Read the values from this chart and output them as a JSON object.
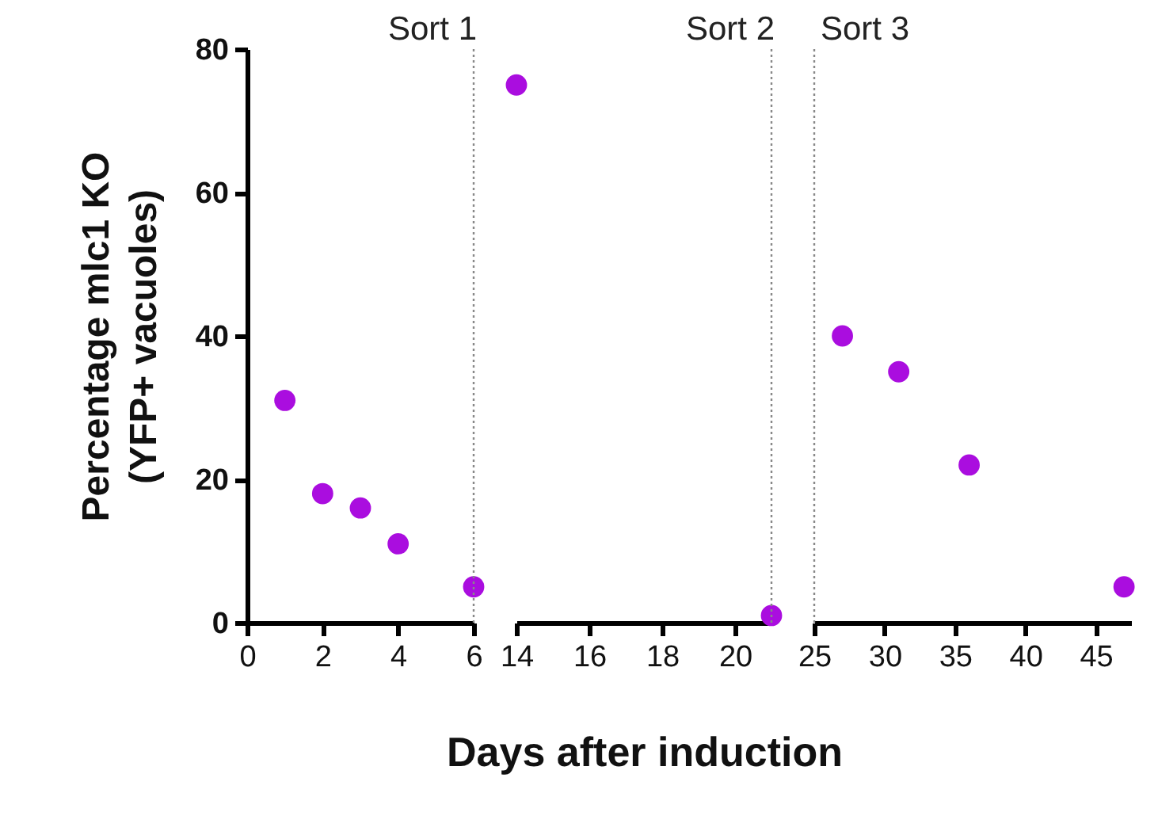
{
  "chart_data": [
    {
      "type": "scatter",
      "ylabel": "Percentage mlc1 KO\n(YFP+ vacuoles)",
      "xlim": [
        0,
        6
      ],
      "xticks": [
        0,
        2,
        4,
        6
      ],
      "ylim": [
        0,
        80
      ],
      "yticks": [
        0,
        20,
        40,
        60,
        80
      ],
      "marker": "circle",
      "grid": false,
      "series": [
        {
          "color": "#aa0ddf",
          "x": [
            1,
            2,
            3,
            4,
            6
          ],
          "values": [
            31,
            18,
            16,
            11,
            5
          ]
        }
      ],
      "ref_lines": [
        {
          "axis": "x",
          "value": 6,
          "label": "Sort 1",
          "color": "#888888",
          "line_style": "dotted"
        }
      ]
    },
    {
      "type": "scatter",
      "xlabel": "Days after induction",
      "xlim": [
        14,
        21
      ],
      "xticks": [
        14,
        16,
        18,
        20
      ],
      "ylim": [
        0,
        80
      ],
      "tick_labels": "x",
      "marker": "circle",
      "grid": false,
      "series": [
        {
          "color": "#aa0ddf",
          "x": [
            14,
            21
          ],
          "values": [
            75,
            1
          ]
        }
      ],
      "ref_lines": [
        {
          "axis": "x",
          "value": 21,
          "label": "Sort 2",
          "color": "#888888",
          "line_style": "dotted"
        }
      ]
    },
    {
      "type": "scatter",
      "xlim": [
        25,
        47.5
      ],
      "xticks": [
        25,
        30,
        35,
        40,
        45
      ],
      "ylim": [
        0,
        80
      ],
      "tick_labels": "x",
      "marker": "circle",
      "grid": false,
      "series": [
        {
          "color": "#aa0ddf",
          "x": [
            27,
            31,
            36,
            47
          ],
          "values": [
            40,
            35,
            22,
            5
          ]
        }
      ],
      "ref_lines": [
        {
          "axis": "x",
          "value": 25,
          "label": "Sort 3",
          "color": "#888888",
          "line_style": "dotted"
        }
      ]
    }
  ]
}
